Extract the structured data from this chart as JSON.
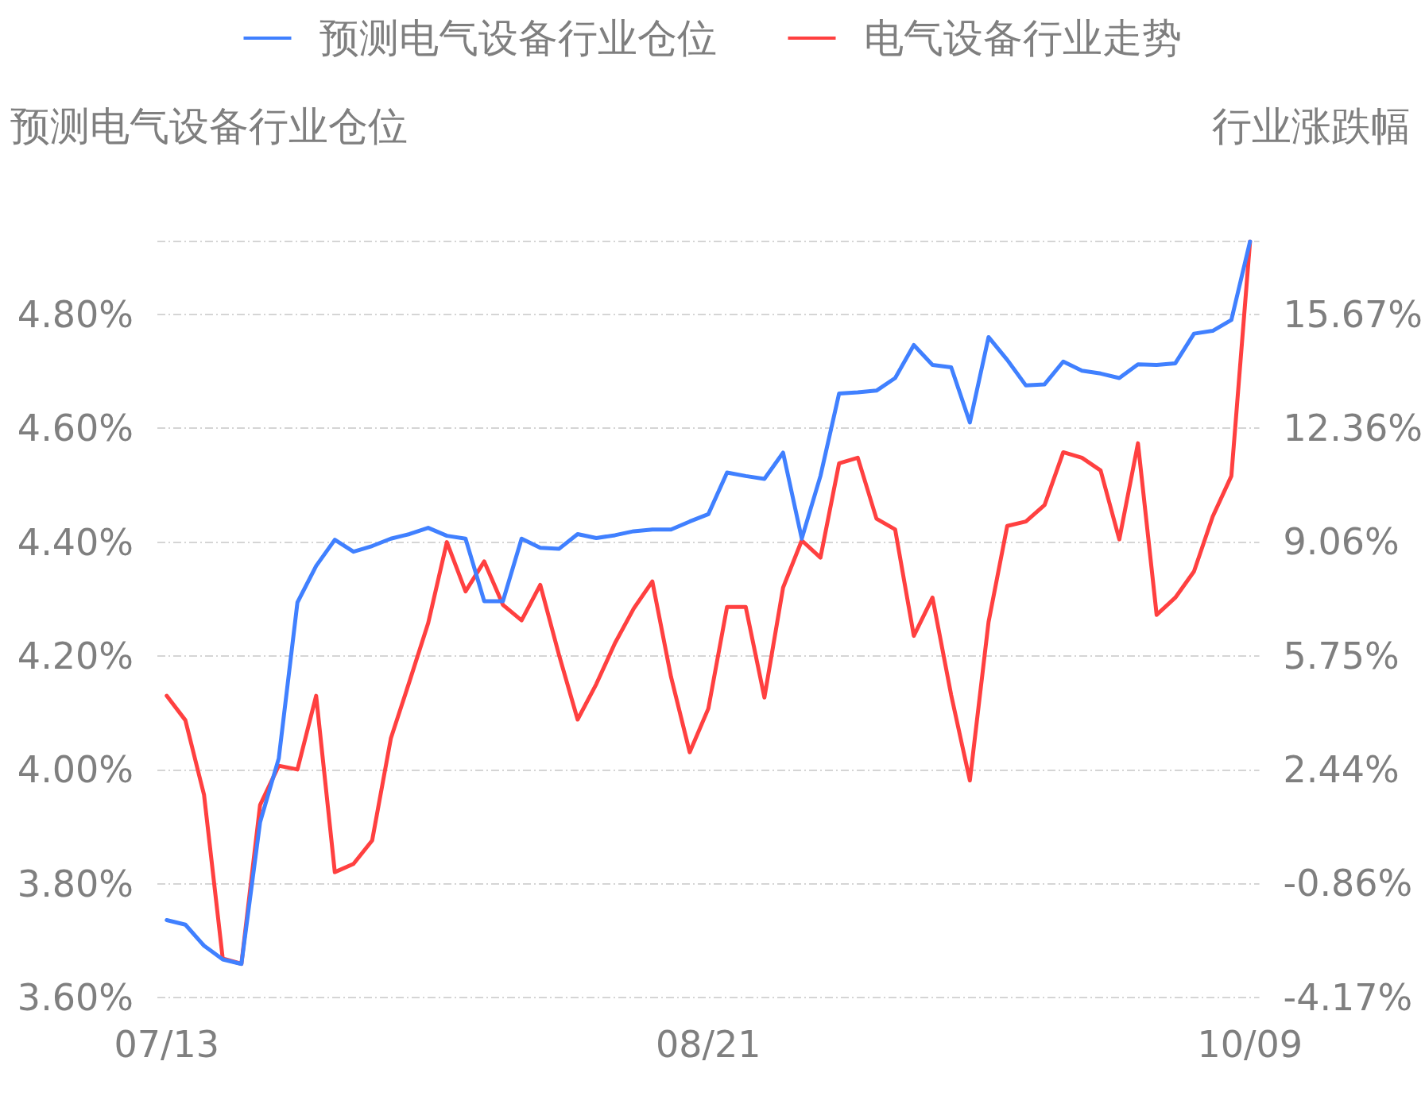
{
  "chart_data": {
    "type": "line",
    "categories": [
      "07/13",
      null,
      null,
      null,
      null,
      null,
      null,
      null,
      null,
      null,
      null,
      null,
      null,
      null,
      null,
      null,
      null,
      null,
      null,
      null,
      null,
      null,
      null,
      null,
      null,
      null,
      null,
      null,
      null,
      "08/21",
      null,
      null,
      null,
      null,
      null,
      null,
      null,
      null,
      null,
      null,
      null,
      null,
      null,
      null,
      null,
      null,
      null,
      null,
      null,
      null,
      null,
      null,
      null,
      null,
      null,
      null,
      null,
      null,
      "10/09"
    ],
    "series": [
      {
        "name": "预测电气设备行业仓位",
        "color": "#4080ff",
        "values": [
          3.736,
          3.728,
          3.691,
          3.667,
          3.659,
          3.908,
          4.02,
          4.294,
          4.358,
          4.404,
          4.383,
          4.393,
          4.406,
          4.414,
          4.425,
          4.411,
          4.406,
          4.296,
          4.296,
          4.406,
          4.39,
          4.388,
          4.414,
          4.407,
          4.412,
          4.419,
          4.422,
          4.422,
          4.436,
          4.449,
          4.522,
          4.516,
          4.511,
          4.557,
          4.406,
          4.516,
          4.661,
          4.663,
          4.666,
          4.688,
          4.746,
          4.711,
          4.707,
          4.61,
          4.76,
          4.72,
          4.675,
          4.677,
          4.717,
          4.701,
          4.696,
          4.688,
          4.712,
          4.711,
          4.714,
          4.766,
          4.771,
          4.79,
          4.928
        ]
      },
      {
        "name": "电气设备行业走势",
        "color": "#ff4040",
        "axis": "y2",
        "values": [
          4.59,
          3.88,
          1.71,
          -3.04,
          -3.19,
          1.42,
          2.56,
          2.45,
          4.59,
          -0.53,
          -0.29,
          0.39,
          3.35,
          5.01,
          6.7,
          9.05,
          7.62,
          8.49,
          7.23,
          6.78,
          7.81,
          5.78,
          3.9,
          4.93,
          6.12,
          7.12,
          7.91,
          5.14,
          2.95,
          4.22,
          7.17,
          7.17,
          4.54,
          7.73,
          9.1,
          8.6,
          11.34,
          11.5,
          9.73,
          9.42,
          6.33,
          7.44,
          4.61,
          2.13,
          6.73,
          9.52,
          9.65,
          10.13,
          11.66,
          11.5,
          11.13,
          9.13,
          11.92,
          6.94,
          7.44,
          8.2,
          9.79,
          10.97,
          17.78
        ]
      }
    ],
    "ylabel": "预测电气设备行业仓位",
    "y2label": "行业涨跌幅",
    "ylim": [
      3.6,
      4.928
    ],
    "yticks": [
      {
        "value": 3.6,
        "label": "3.60%"
      },
      {
        "value": 3.8,
        "label": "3.80%"
      },
      {
        "value": 4.0,
        "label": "4.00%"
      },
      {
        "value": 4.2,
        "label": "4.20%"
      },
      {
        "value": 4.4,
        "label": "4.40%"
      },
      {
        "value": 4.6,
        "label": "4.60%"
      },
      {
        "value": 4.8,
        "label": "4.80%"
      }
    ],
    "y2lim": [
      -4.17,
      17.78
    ],
    "y2ticks": [
      {
        "value": -4.17,
        "label": "-4.17%"
      },
      {
        "value": -0.86,
        "label": "-0.86%"
      },
      {
        "value": 2.44,
        "label": "2.44%"
      },
      {
        "value": 5.75,
        "label": "5.75%"
      },
      {
        "value": 9.06,
        "label": "9.06%"
      },
      {
        "value": 12.36,
        "label": "12.36%"
      },
      {
        "value": 15.67,
        "label": "15.67%"
      }
    ],
    "grid": "y",
    "legend": "top",
    "marker": "none",
    "line_style": "solid"
  }
}
